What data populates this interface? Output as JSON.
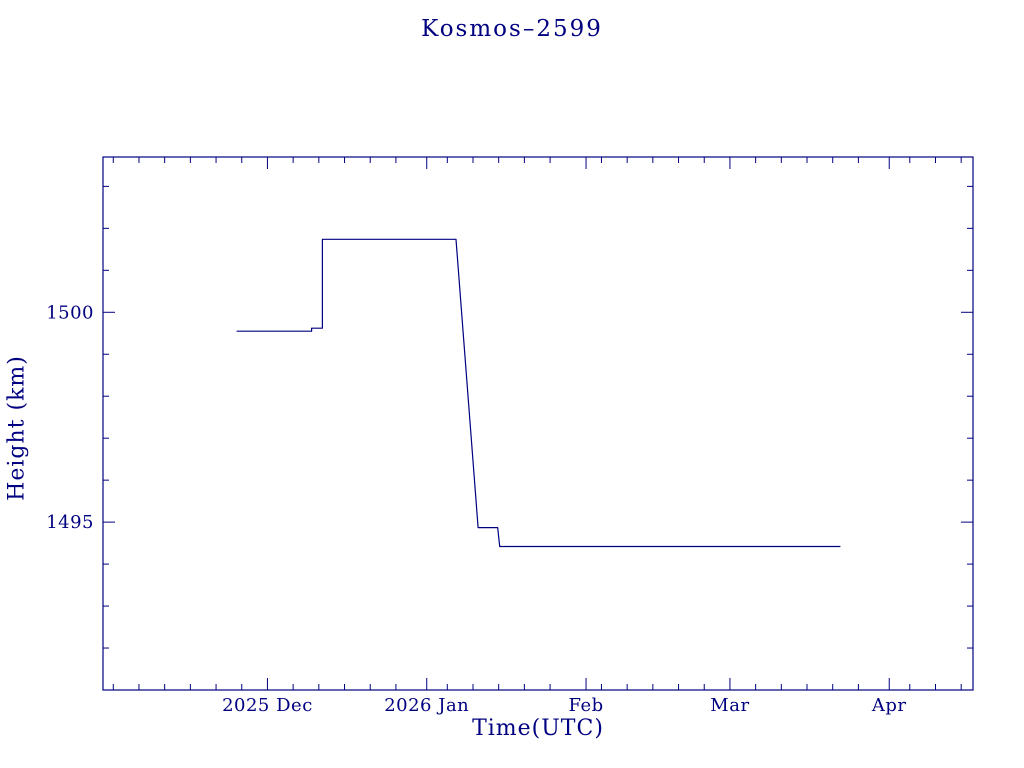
{
  "page": {
    "background": "#ffffff"
  },
  "chart_data": {
    "type": "line",
    "title": "Kosmos–2599",
    "xlabel": "Time(UTC)",
    "ylabel": "Height (km)",
    "axis_color": "#000080",
    "line_color": "#000080",
    "grid": false,
    "legend": "none",
    "x_unit": "days relative to 2025-12-01",
    "xlim": [
      -32,
      137.3
    ],
    "ylim": [
      1491.0,
      1503.7
    ],
    "x_major_ticks": [
      {
        "value": 0,
        "label": "2025 Dec"
      },
      {
        "value": 31,
        "label": "2026 Jan"
      },
      {
        "value": 62,
        "label": "Feb"
      },
      {
        "value": 90,
        "label": "Mar"
      },
      {
        "value": 121,
        "label": "Apr"
      }
    ],
    "x_minor_tick_step": 5,
    "y_major_ticks": [
      {
        "value": 1495,
        "label": "1495"
      },
      {
        "value": 1500,
        "label": "1500"
      }
    ],
    "y_minor_tick_step": 1,
    "series": [
      {
        "name": "height",
        "points": [
          [
            -6.0,
            1499.55
          ],
          [
            8.6,
            1499.55
          ],
          [
            8.6,
            1499.62
          ],
          [
            10.7,
            1499.62
          ],
          [
            10.7,
            1501.74
          ],
          [
            36.7,
            1501.74
          ],
          [
            41.0,
            1494.87
          ],
          [
            44.8,
            1494.87
          ],
          [
            45.2,
            1494.42
          ],
          [
            111.5,
            1494.42
          ]
        ]
      }
    ]
  }
}
